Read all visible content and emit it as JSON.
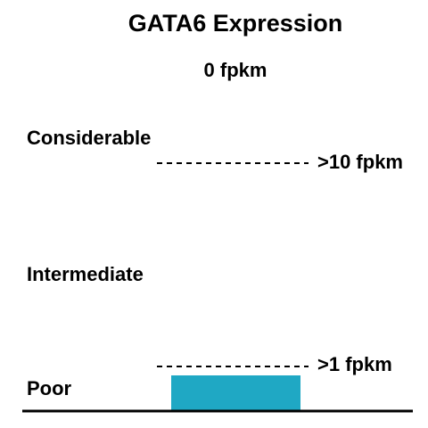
{
  "chart_data": {
    "type": "bar",
    "title": "GATA6 Expression",
    "value_label": "0 fpkm",
    "values": [
      0
    ],
    "bar_color": "#1fa8c4",
    "levels": [
      "Considerable",
      "Intermediate",
      "Poor"
    ],
    "thresholds": [
      {
        "label": ">10 fpkm",
        "value": 10
      },
      {
        "label": ">1 fpkm",
        "value": 1
      }
    ]
  }
}
